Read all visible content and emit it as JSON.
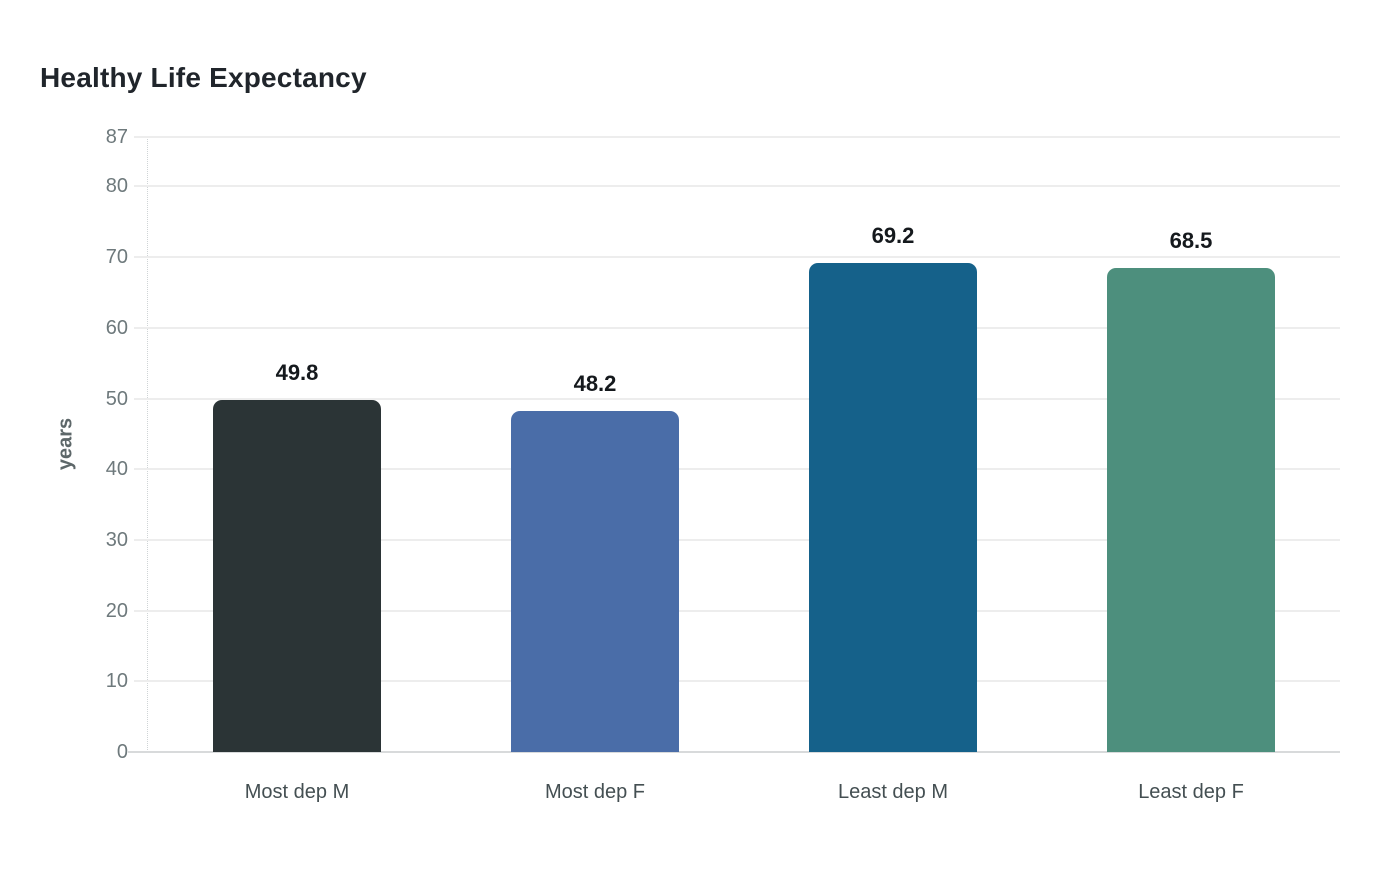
{
  "title": "Healthy Life Expectancy",
  "background_color": "#ffffff",
  "chart_data": {
    "type": "bar",
    "title": "Healthy Life Expectancy",
    "categories": [
      "Most dep M",
      "Most dep F",
      "Least dep M",
      "Least dep F"
    ],
    "values": [
      49.8,
      48.2,
      69.2,
      68.5
    ],
    "value_labels": [
      "49.8",
      "48.2",
      "69.2",
      "68.5"
    ],
    "bar_colors": [
      "#2b3436",
      "#4a6da8",
      "#15618a",
      "#4d8f7d"
    ],
    "xlabel": "",
    "ylabel": "years",
    "ylim": [
      0,
      87
    ],
    "yticks": [
      0,
      10,
      20,
      30,
      40,
      50,
      60,
      70,
      80,
      87
    ],
    "grid": "horizontal",
    "legend": "none",
    "gridline_color": "#ededed",
    "baseline_color": "#d8dadb",
    "ytick_label_color": "#6e797c",
    "xtick_label_color": "#444f52",
    "title_color": "#20252b",
    "value_label_color": "#15191d",
    "axis_title_color": "#5d6769"
  }
}
